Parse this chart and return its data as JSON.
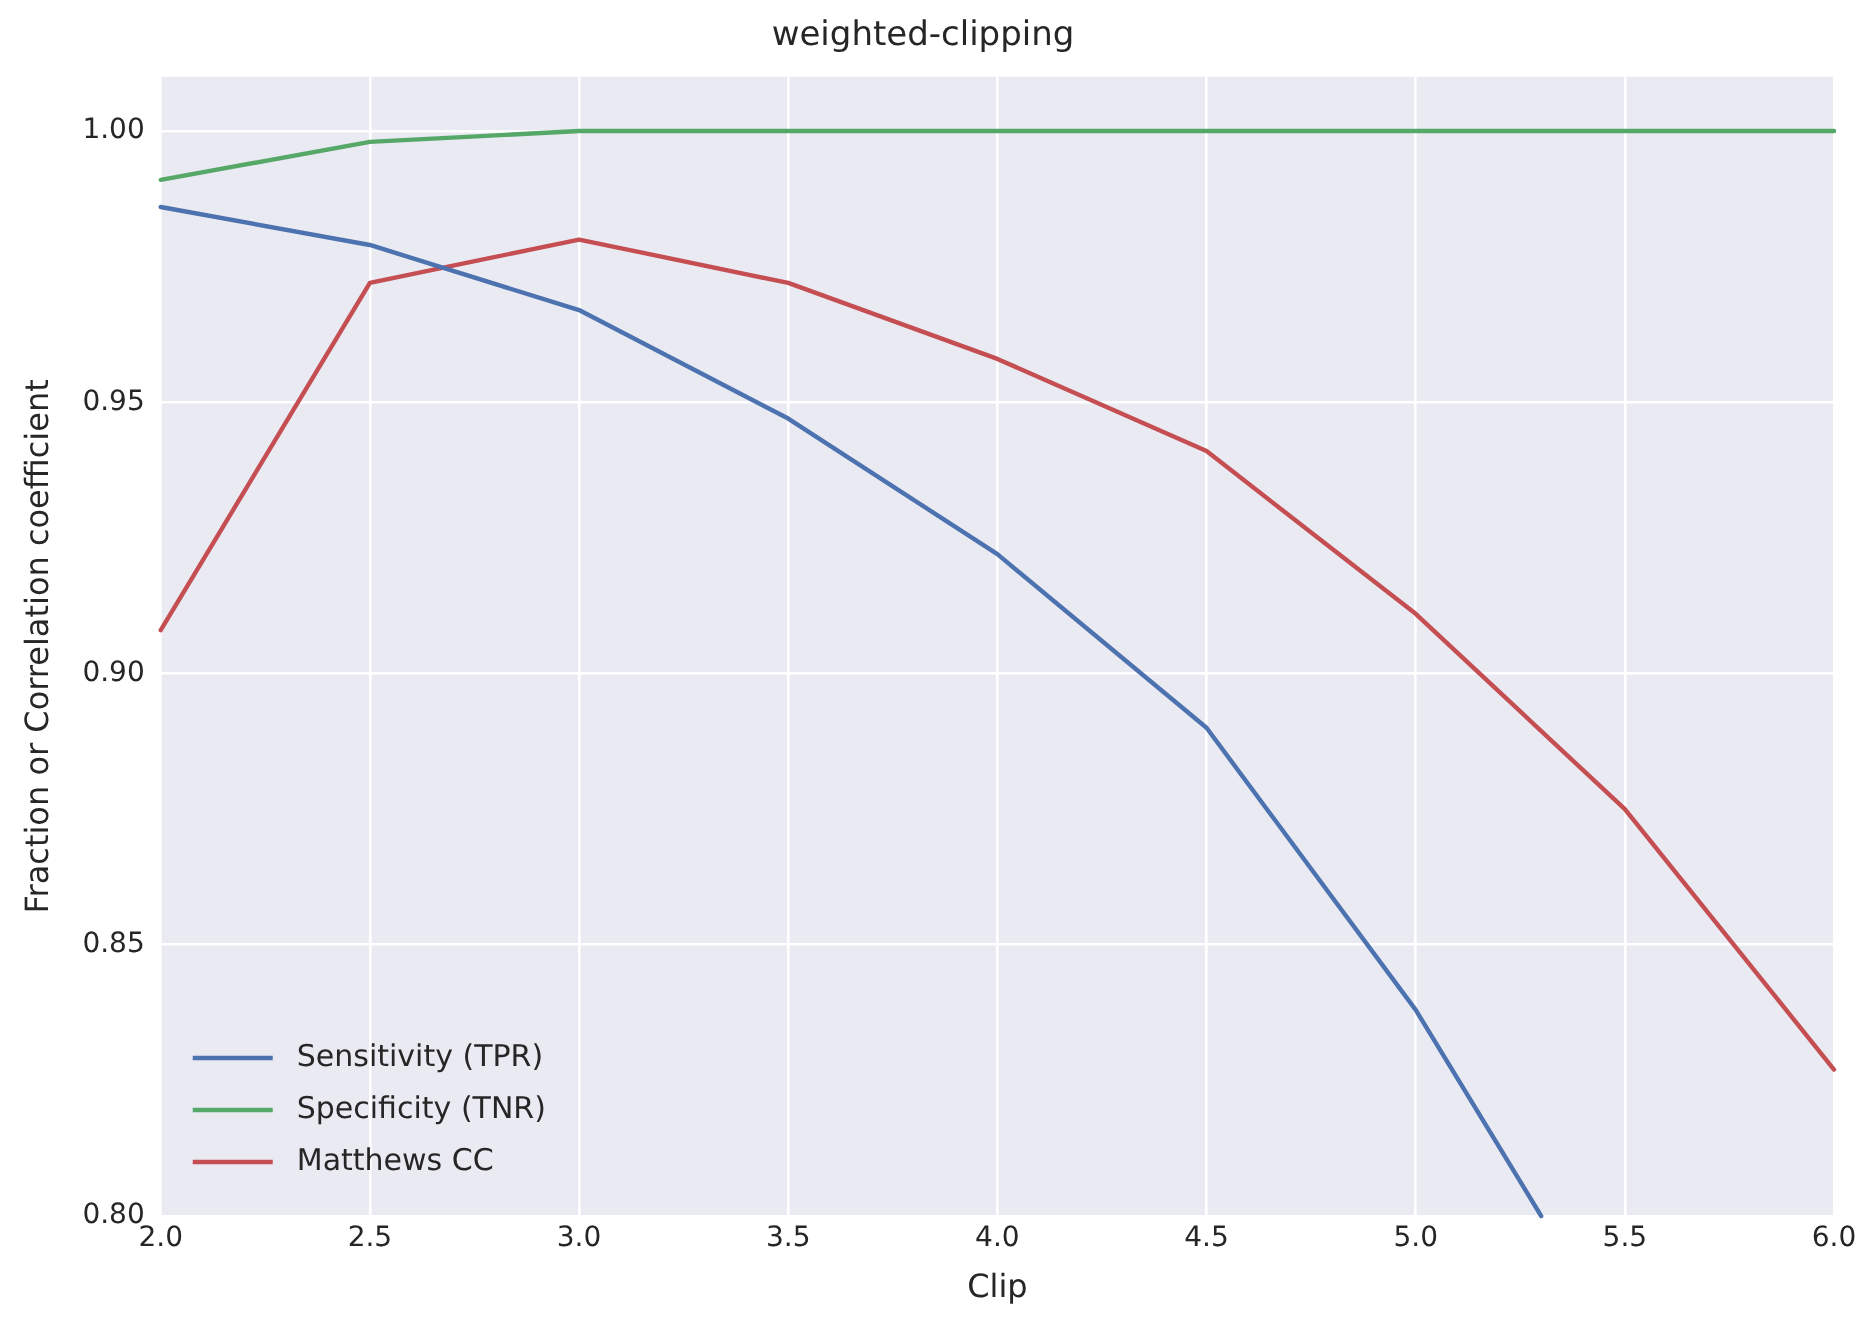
{
  "chart_data": {
    "type": "line",
    "title": "weighted-clipping",
    "xlabel": "Clip",
    "ylabel": "Fraction or Correlation coefficient",
    "x": [
      2.0,
      2.5,
      3.0,
      3.5,
      4.0,
      4.5,
      5.0,
      5.5,
      6.0
    ],
    "series": [
      {
        "name": "Sensitivity (TPR)",
        "color": "#4c72b0",
        "x": [
          2.0,
          2.5,
          3.0,
          3.5,
          4.0,
          4.5,
          5.0,
          5.3
        ],
        "values": [
          0.986,
          0.979,
          0.967,
          0.947,
          0.922,
          0.89,
          0.838,
          0.8
        ]
      },
      {
        "name": "Specificity (TNR)",
        "color": "#55a868",
        "values": [
          0.991,
          0.998,
          1.0,
          1.0,
          1.0,
          1.0,
          1.0,
          1.0,
          1.0
        ]
      },
      {
        "name": "Matthews CC",
        "color": "#c44e52",
        "values": [
          0.908,
          0.972,
          0.98,
          0.972,
          0.958,
          0.941,
          0.911,
          0.875,
          0.827
        ]
      }
    ],
    "xlim": [
      2.0,
      6.0
    ],
    "ylim": [
      0.8,
      1.01
    ],
    "xticks": [
      {
        "value": 2,
        "label": "2.0"
      },
      {
        "value": 2.5,
        "label": "2.5"
      },
      {
        "value": 3,
        "label": "3.0"
      },
      {
        "value": 3.5,
        "label": "3.5"
      },
      {
        "value": 4,
        "label": "4.0"
      },
      {
        "value": 4.5,
        "label": "4.5"
      },
      {
        "value": 5,
        "label": "5.0"
      },
      {
        "value": 5.5,
        "label": "5.5"
      },
      {
        "value": 6,
        "label": "6.0"
      }
    ],
    "yticks": [
      {
        "value": 0.8,
        "label": "0.80"
      },
      {
        "value": 0.85,
        "label": "0.85"
      },
      {
        "value": 0.9,
        "label": "0.90"
      },
      {
        "value": 0.95,
        "label": "0.95"
      },
      {
        "value": 1,
        "label": "1.00"
      }
    ],
    "grid": true,
    "legend": "bottom left",
    "marker": "none",
    "line_style": "solid"
  }
}
